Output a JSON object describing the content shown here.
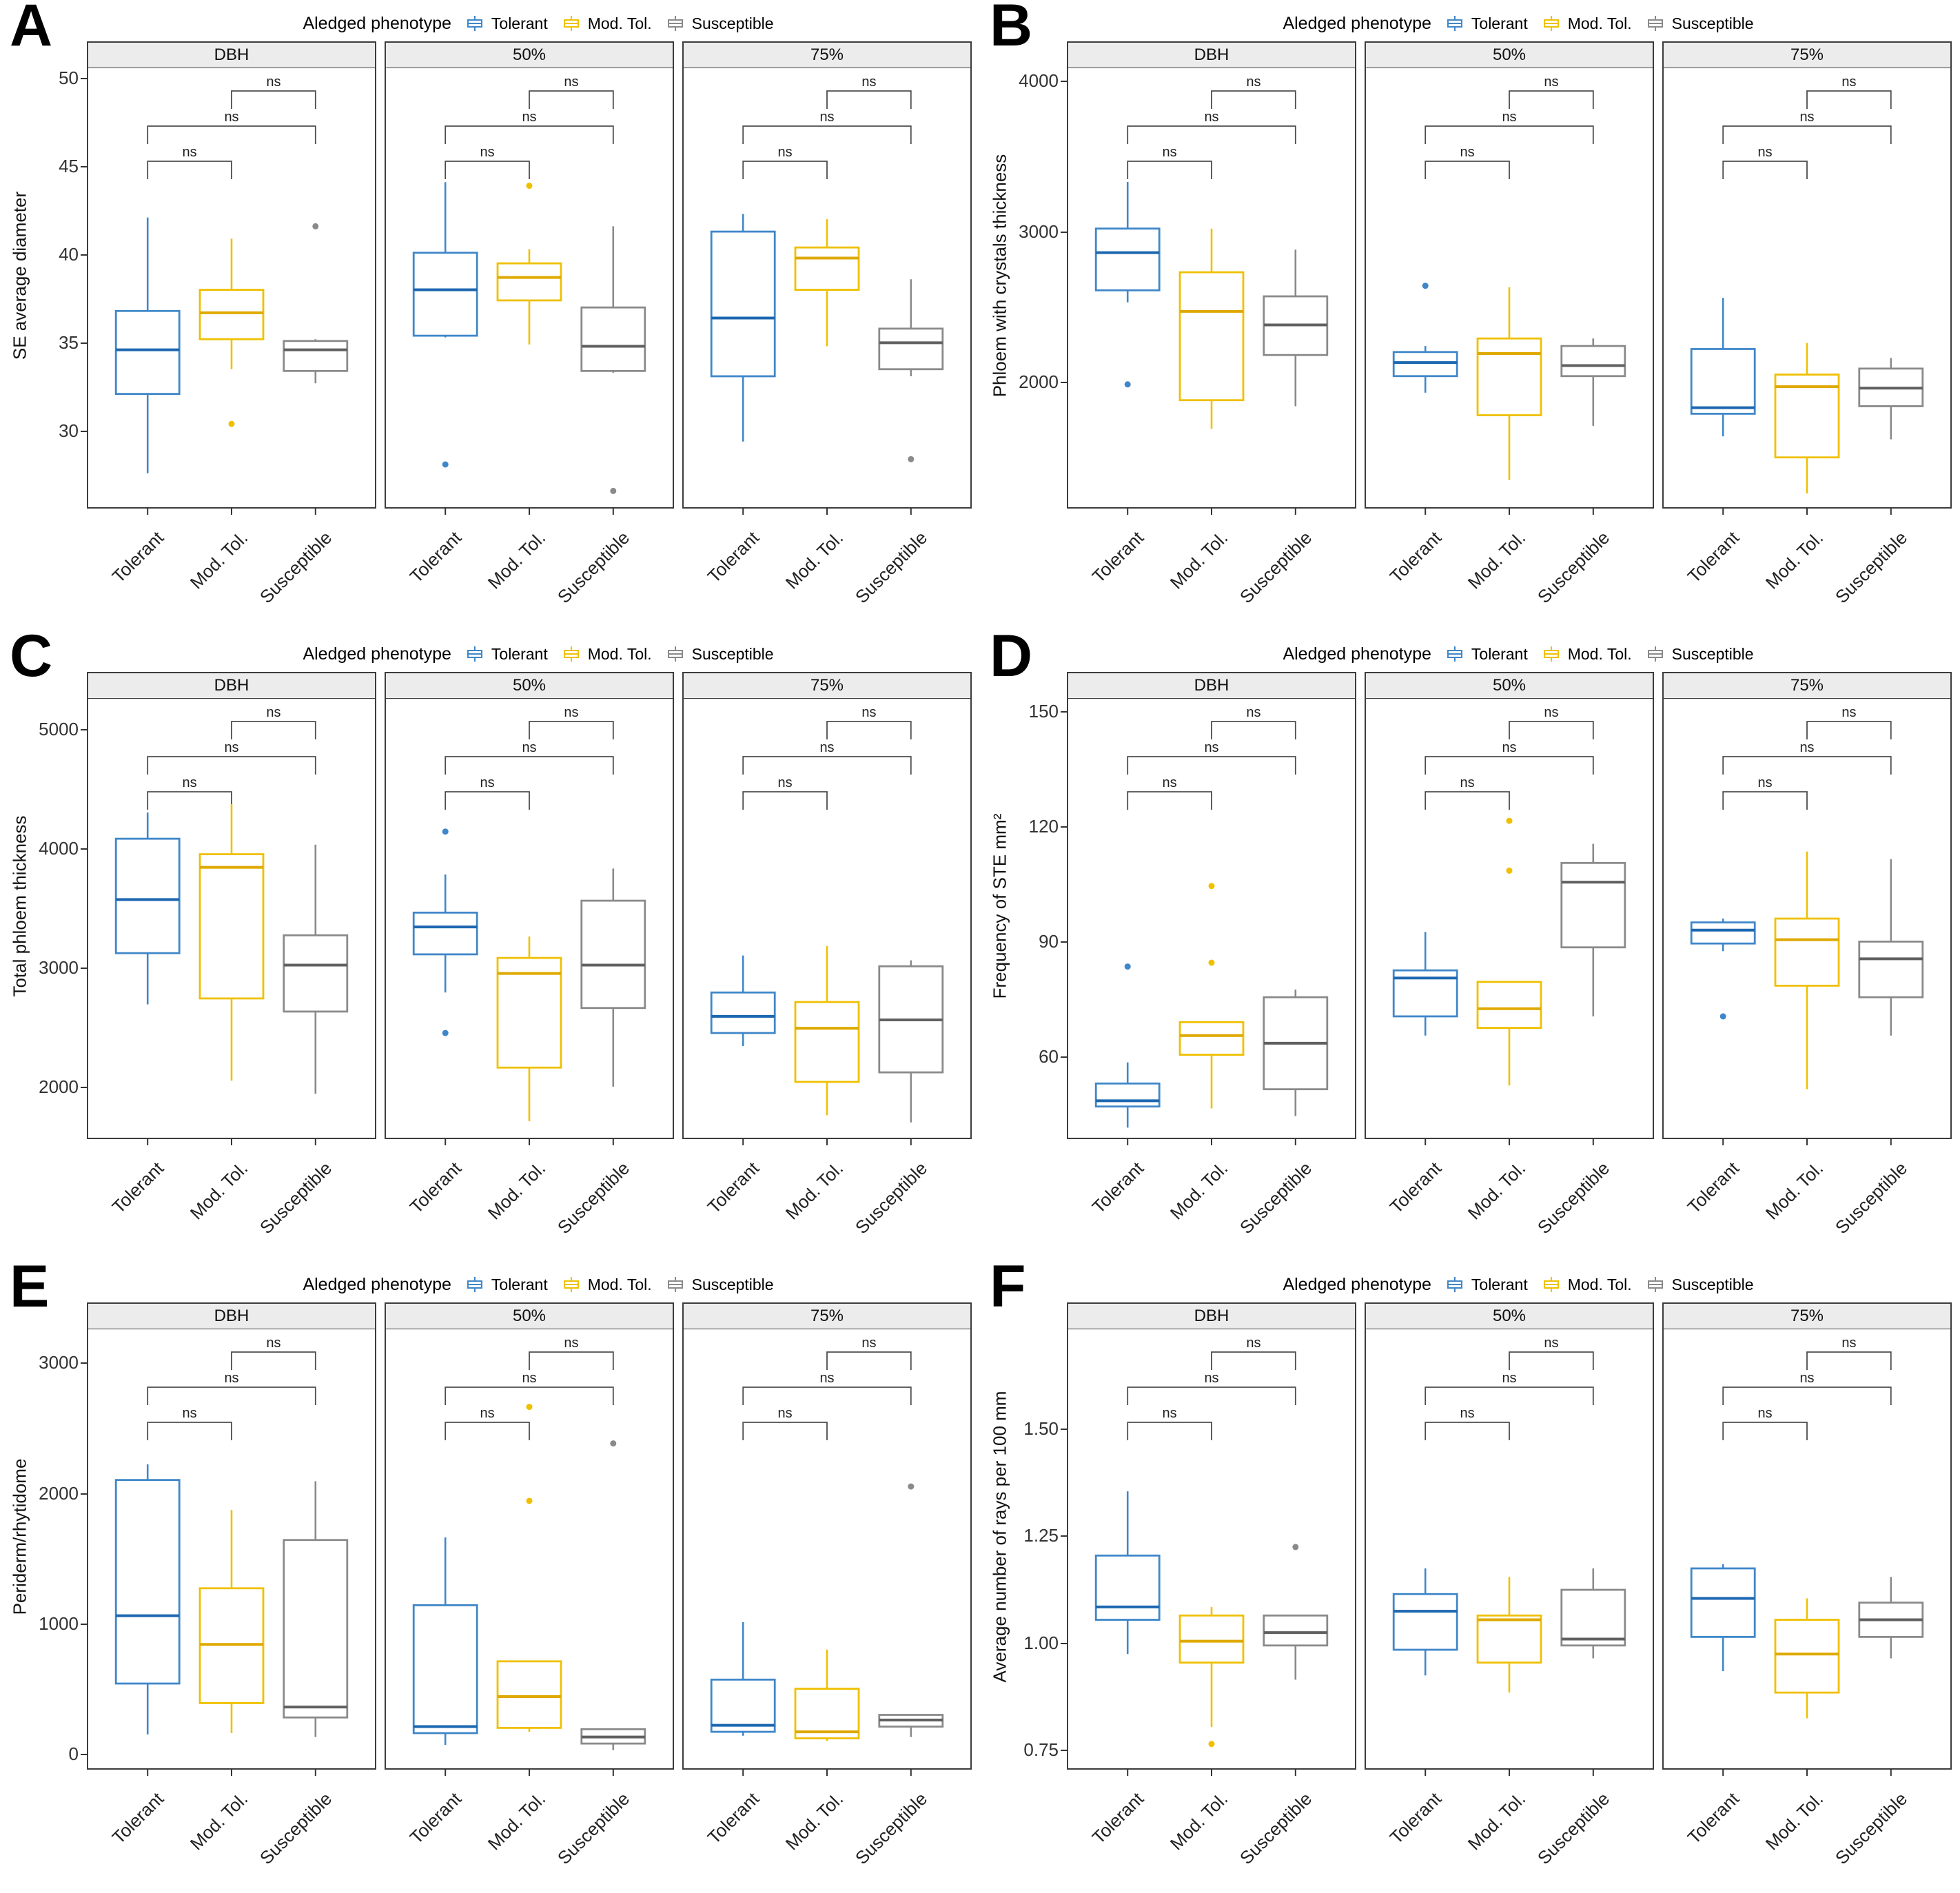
{
  "figure": {
    "legend_title": "Aledged phenotype",
    "significance_label": "ns",
    "series": [
      {
        "label": "Tolerant",
        "box_color": "#3f87c9",
        "median_color": "#1c67b0"
      },
      {
        "label": "Mod. Tol.",
        "box_color": "#EFC000",
        "median_color": "#DFA900"
      },
      {
        "label": "Susceptible",
        "box_color": "#8a8a8a",
        "median_color": "#606060"
      }
    ],
    "comparisons": [
      {
        "a": 0,
        "b": 1,
        "label": "ns"
      },
      {
        "a": 0,
        "b": 2,
        "label": "ns"
      },
      {
        "a": 1,
        "b": 2,
        "label": "ns"
      }
    ],
    "facet_labels": [
      "DBH",
      "50%",
      "75%"
    ],
    "categories": [
      "Tolerant",
      "Mod. Tol.",
      "Susceptible"
    ]
  },
  "chart_data": [
    {
      "type": "boxplot",
      "panel": "A",
      "ylabel": "SE average diameter",
      "ylim": [
        25.5,
        50.5
      ],
      "ytick_values": [
        30,
        35,
        40,
        45,
        50
      ],
      "ytick_labels": [
        "30",
        "35",
        "40",
        "45",
        "50"
      ],
      "facets": [
        {
          "label": "DBH",
          "groups": [
            {
              "name": "Tolerant",
              "whisker_low": 27.5,
              "q1": 32.0,
              "median": 34.5,
              "q3": 36.7,
              "whisker_high": 42.0,
              "outliers": []
            },
            {
              "name": "Mod. Tol.",
              "whisker_low": 33.4,
              "q1": 35.1,
              "median": 36.6,
              "q3": 37.9,
              "whisker_high": 40.8,
              "outliers": [
                30.3
              ]
            },
            {
              "name": "Susceptible",
              "whisker_low": 32.6,
              "q1": 33.3,
              "median": 34.5,
              "q3": 35.0,
              "whisker_high": 35.1,
              "outliers": [
                41.5
              ]
            }
          ]
        },
        {
          "label": "50%",
          "groups": [
            {
              "name": "Tolerant",
              "whisker_low": 35.2,
              "q1": 35.3,
              "median": 37.9,
              "q3": 40.0,
              "whisker_high": 44.0,
              "outliers": [
                28.0
              ]
            },
            {
              "name": "Mod. Tol.",
              "whisker_low": 34.8,
              "q1": 37.3,
              "median": 38.6,
              "q3": 39.4,
              "whisker_high": 40.2,
              "outliers": [
                43.8
              ]
            },
            {
              "name": "Susceptible",
              "whisker_low": 33.2,
              "q1": 33.3,
              "median": 34.7,
              "q3": 36.9,
              "whisker_high": 41.5,
              "outliers": [
                26.5
              ]
            }
          ]
        },
        {
          "label": "75%",
          "groups": [
            {
              "name": "Tolerant",
              "whisker_low": 29.3,
              "q1": 33.0,
              "median": 36.3,
              "q3": 41.2,
              "whisker_high": 42.2,
              "outliers": []
            },
            {
              "name": "Mod. Tol.",
              "whisker_low": 34.7,
              "q1": 37.9,
              "median": 39.7,
              "q3": 40.3,
              "whisker_high": 41.9,
              "outliers": []
            },
            {
              "name": "Susceptible",
              "whisker_low": 33.0,
              "q1": 33.4,
              "median": 34.9,
              "q3": 35.7,
              "whisker_high": 38.5,
              "outliers": [
                28.3
              ]
            }
          ]
        }
      ]
    },
    {
      "type": "boxplot",
      "panel": "B",
      "ylabel": "Phloem with crystals thickness",
      "ylim": [
        1150,
        4080
      ],
      "ytick_values": [
        2000,
        3000,
        4000
      ],
      "ytick_labels": [
        "2000",
        "3000",
        "4000"
      ],
      "facets": [
        {
          "label": "DBH",
          "groups": [
            {
              "name": "Tolerant",
              "whisker_low": 2520,
              "q1": 2600,
              "median": 2850,
              "q3": 3010,
              "whisker_high": 3320,
              "outliers": [
                1975
              ]
            },
            {
              "name": "Mod. Tol.",
              "whisker_low": 1680,
              "q1": 1870,
              "median": 2460,
              "q3": 2720,
              "whisker_high": 3010,
              "outliers": []
            },
            {
              "name": "Susceptible",
              "whisker_low": 1830,
              "q1": 2170,
              "median": 2370,
              "q3": 2560,
              "whisker_high": 2870,
              "outliers": []
            }
          ]
        },
        {
          "label": "50%",
          "groups": [
            {
              "name": "Tolerant",
              "whisker_low": 1920,
              "q1": 2030,
              "median": 2120,
              "q3": 2190,
              "whisker_high": 2230,
              "outliers": [
                2630
              ]
            },
            {
              "name": "Mod. Tol.",
              "whisker_low": 1340,
              "q1": 1770,
              "median": 2180,
              "q3": 2280,
              "whisker_high": 2620,
              "outliers": []
            },
            {
              "name": "Susceptible",
              "whisker_low": 1700,
              "q1": 2030,
              "median": 2100,
              "q3": 2230,
              "whisker_high": 2280,
              "outliers": []
            }
          ]
        },
        {
          "label": "75%",
          "groups": [
            {
              "name": "Tolerant",
              "whisker_low": 1630,
              "q1": 1780,
              "median": 1820,
              "q3": 2210,
              "whisker_high": 2550,
              "outliers": []
            },
            {
              "name": "Mod. Tol.",
              "whisker_low": 1250,
              "q1": 1490,
              "median": 1960,
              "q3": 2040,
              "whisker_high": 2250,
              "outliers": []
            },
            {
              "name": "Susceptible",
              "whisker_low": 1610,
              "q1": 1830,
              "median": 1950,
              "q3": 2080,
              "whisker_high": 2150,
              "outliers": []
            }
          ]
        }
      ]
    },
    {
      "type": "boxplot",
      "panel": "C",
      "ylabel": "Total phloem thickness",
      "ylim": [
        1550,
        5250
      ],
      "ytick_values": [
        2000,
        3000,
        4000,
        5000
      ],
      "ytick_labels": [
        "2000",
        "3000",
        "4000",
        "5000"
      ],
      "facets": [
        {
          "label": "DBH",
          "groups": [
            {
              "name": "Tolerant",
              "whisker_low": 2680,
              "q1": 3110,
              "median": 3560,
              "q3": 4070,
              "whisker_high": 4290,
              "outliers": []
            },
            {
              "name": "Mod. Tol.",
              "whisker_low": 2040,
              "q1": 2730,
              "median": 3830,
              "q3": 3940,
              "whisker_high": 4360,
              "outliers": []
            },
            {
              "name": "Susceptible",
              "whisker_low": 1930,
              "q1": 2620,
              "median": 3010,
              "q3": 3260,
              "whisker_high": 4020,
              "outliers": []
            }
          ]
        },
        {
          "label": "50%",
          "groups": [
            {
              "name": "Tolerant",
              "whisker_low": 2780,
              "q1": 3100,
              "median": 3330,
              "q3": 3450,
              "whisker_high": 3770,
              "outliers": [
                4130,
                2440
              ]
            },
            {
              "name": "Mod. Tol.",
              "whisker_low": 1700,
              "q1": 2150,
              "median": 2940,
              "q3": 3070,
              "whisker_high": 3250,
              "outliers": []
            },
            {
              "name": "Susceptible",
              "whisker_low": 1990,
              "q1": 2650,
              "median": 3010,
              "q3": 3550,
              "whisker_high": 3820,
              "outliers": []
            }
          ]
        },
        {
          "label": "75%",
          "groups": [
            {
              "name": "Tolerant",
              "whisker_low": 2330,
              "q1": 2440,
              "median": 2580,
              "q3": 2780,
              "whisker_high": 3090,
              "outliers": []
            },
            {
              "name": "Mod. Tol.",
              "whisker_low": 1750,
              "q1": 2030,
              "median": 2480,
              "q3": 2700,
              "whisker_high": 3170,
              "outliers": []
            },
            {
              "name": "Susceptible",
              "whisker_low": 1690,
              "q1": 2110,
              "median": 2550,
              "q3": 3000,
              "whisker_high": 3050,
              "outliers": []
            }
          ]
        }
      ]
    },
    {
      "type": "boxplot",
      "panel": "D",
      "ylabel": "Frequency of STE mm²",
      "ylim": [
        38,
        153
      ],
      "ytick_values": [
        60,
        90,
        120,
        150
      ],
      "ytick_labels": [
        "60",
        "90",
        "120",
        "150"
      ],
      "facets": [
        {
          "label": "DBH",
          "groups": [
            {
              "name": "Tolerant",
              "whisker_low": 41,
              "q1": 46.5,
              "median": 48,
              "q3": 52.5,
              "whisker_high": 58,
              "outliers": [
                83
              ]
            },
            {
              "name": "Mod. Tol.",
              "whisker_low": 46,
              "q1": 60,
              "median": 65,
              "q3": 68.5,
              "whisker_high": 68.5,
              "outliers": [
                104,
                84
              ]
            },
            {
              "name": "Susceptible",
              "whisker_low": 44,
              "q1": 51,
              "median": 63,
              "q3": 75,
              "whisker_high": 77,
              "outliers": []
            }
          ]
        },
        {
          "label": "50%",
          "groups": [
            {
              "name": "Tolerant",
              "whisker_low": 65,
              "q1": 70,
              "median": 80,
              "q3": 82,
              "whisker_high": 92,
              "outliers": []
            },
            {
              "name": "Mod. Tol.",
              "whisker_low": 52,
              "q1": 67,
              "median": 72,
              "q3": 79,
              "whisker_high": 79,
              "outliers": [
                121,
                108
              ]
            },
            {
              "name": "Susceptible",
              "whisker_low": 70,
              "q1": 88,
              "median": 105,
              "q3": 110,
              "whisker_high": 115,
              "outliers": []
            }
          ]
        },
        {
          "label": "75%",
          "groups": [
            {
              "name": "Tolerant",
              "whisker_low": 87,
              "q1": 89,
              "median": 92.5,
              "q3": 94.5,
              "whisker_high": 95.5,
              "outliers": [
                70
              ]
            },
            {
              "name": "Mod. Tol.",
              "whisker_low": 51,
              "q1": 78,
              "median": 90,
              "q3": 95.5,
              "whisker_high": 113,
              "outliers": []
            },
            {
              "name": "Susceptible",
              "whisker_low": 65,
              "q1": 75,
              "median": 85,
              "q3": 89.5,
              "whisker_high": 111,
              "outliers": []
            }
          ]
        }
      ]
    },
    {
      "type": "boxplot",
      "panel": "E",
      "ylabel": "Periderm/rhytidome",
      "ylim": [
        -130,
        3250
      ],
      "ytick_values": [
        0,
        1000,
        2000,
        3000
      ],
      "ytick_labels": [
        "0",
        "1000",
        "2000",
        "3000"
      ],
      "facets": [
        {
          "label": "DBH",
          "groups": [
            {
              "name": "Tolerant",
              "whisker_low": 140,
              "q1": 530,
              "median": 1050,
              "q3": 2090,
              "whisker_high": 2210,
              "outliers": []
            },
            {
              "name": "Mod. Tol.",
              "whisker_low": 150,
              "q1": 380,
              "median": 830,
              "q3": 1260,
              "whisker_high": 1860,
              "outliers": []
            },
            {
              "name": "Susceptible",
              "whisker_low": 120,
              "q1": 270,
              "median": 350,
              "q3": 1630,
              "whisker_high": 2080,
              "outliers": []
            }
          ]
        },
        {
          "label": "50%",
          "groups": [
            {
              "name": "Tolerant",
              "whisker_low": 60,
              "q1": 150,
              "median": 200,
              "q3": 1130,
              "whisker_high": 1650,
              "outliers": []
            },
            {
              "name": "Mod. Tol.",
              "whisker_low": 160,
              "q1": 190,
              "median": 430,
              "q3": 700,
              "whisker_high": 700,
              "outliers": [
                2650,
                1930
              ]
            },
            {
              "name": "Susceptible",
              "whisker_low": 20,
              "q1": 70,
              "median": 120,
              "q3": 180,
              "whisker_high": 180,
              "outliers": [
                2370
              ]
            }
          ]
        },
        {
          "label": "75%",
          "groups": [
            {
              "name": "Tolerant",
              "whisker_low": 130,
              "q1": 160,
              "median": 210,
              "q3": 560,
              "whisker_high": 1000,
              "outliers": []
            },
            {
              "name": "Mod. Tol.",
              "whisker_low": 90,
              "q1": 110,
              "median": 160,
              "q3": 490,
              "whisker_high": 790,
              "outliers": []
            },
            {
              "name": "Susceptible",
              "whisker_low": 120,
              "q1": 200,
              "median": 250,
              "q3": 290,
              "whisker_high": 290,
              "outliers": [
                2040
              ]
            }
          ]
        }
      ]
    },
    {
      "type": "boxplot",
      "panel": "F",
      "ylabel": "Average number of rays per 100 mm",
      "ylim": [
        0.7,
        1.73
      ],
      "ytick_values": [
        0.75,
        1.0,
        1.25,
        1.5
      ],
      "ytick_labels": [
        "0.75",
        "1.00",
        "1.25",
        "1.50"
      ],
      "facets": [
        {
          "label": "DBH",
          "groups": [
            {
              "name": "Tolerant",
              "whisker_low": 0.97,
              "q1": 1.05,
              "median": 1.08,
              "q3": 1.2,
              "whisker_high": 1.35,
              "outliers": []
            },
            {
              "name": "Mod. Tol.",
              "whisker_low": 0.8,
              "q1": 0.95,
              "median": 1.0,
              "q3": 1.06,
              "whisker_high": 1.08,
              "outliers": [
                0.76
              ]
            },
            {
              "name": "Susceptible",
              "whisker_low": 0.91,
              "q1": 0.99,
              "median": 1.02,
              "q3": 1.06,
              "whisker_high": 1.06,
              "outliers": [
                1.22
              ]
            }
          ]
        },
        {
          "label": "50%",
          "groups": [
            {
              "name": "Tolerant",
              "whisker_low": 0.92,
              "q1": 0.98,
              "median": 1.07,
              "q3": 1.11,
              "whisker_high": 1.17,
              "outliers": []
            },
            {
              "name": "Mod. Tol.",
              "whisker_low": 0.88,
              "q1": 0.95,
              "median": 1.05,
              "q3": 1.06,
              "whisker_high": 1.15,
              "outliers": []
            },
            {
              "name": "Susceptible",
              "whisker_low": 0.96,
              "q1": 0.99,
              "median": 1.005,
              "q3": 1.12,
              "whisker_high": 1.17,
              "outliers": []
            }
          ]
        },
        {
          "label": "75%",
          "groups": [
            {
              "name": "Tolerant",
              "whisker_low": 0.93,
              "q1": 1.01,
              "median": 1.1,
              "q3": 1.17,
              "whisker_high": 1.18,
              "outliers": []
            },
            {
              "name": "Mod. Tol.",
              "whisker_low": 0.82,
              "q1": 0.88,
              "median": 0.97,
              "q3": 1.05,
              "whisker_high": 1.1,
              "outliers": []
            },
            {
              "name": "Susceptible",
              "whisker_low": 0.96,
              "q1": 1.01,
              "median": 1.05,
              "q3": 1.09,
              "whisker_high": 1.15,
              "outliers": []
            }
          ]
        }
      ]
    }
  ]
}
